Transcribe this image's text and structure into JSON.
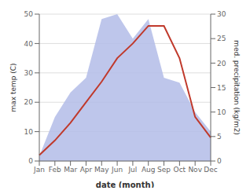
{
  "chart_data": {
    "type": "line",
    "categories": [
      "Jan",
      "Feb",
      "Mar",
      "Apr",
      "May",
      "Jun",
      "Jul",
      "Aug",
      "Sep",
      "Oct",
      "Nov",
      "Dec"
    ],
    "series": [
      {
        "type": "area",
        "color": "#b3bce8",
        "axis": "y2",
        "values": [
          1,
          9,
          14,
          17,
          29,
          30,
          25,
          29,
          17,
          16,
          10,
          6
        ]
      },
      {
        "type": "line",
        "color": "#c0392b",
        "values": [
          2,
          7,
          13,
          20,
          27,
          35,
          40,
          46,
          46,
          35,
          15,
          8
        ]
      }
    ],
    "xlabel": "date (month)",
    "ylabel": "max temp (C)",
    "y2label": "med. precipitation (kg/m2)",
    "ylim": [
      0,
      50
    ],
    "yticks": [
      0,
      10,
      20,
      30,
      40,
      50
    ],
    "y2lim": [
      0,
      30
    ],
    "y2ticks": [
      0,
      5,
      10,
      15,
      20,
      25,
      30
    ],
    "grid": true
  }
}
